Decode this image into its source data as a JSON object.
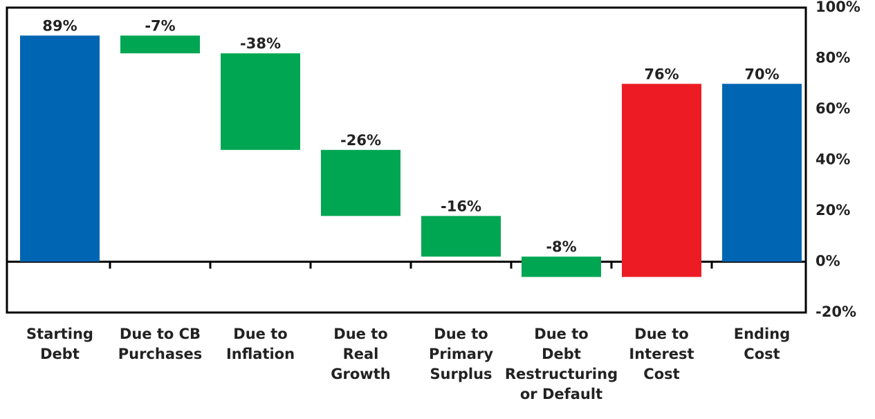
{
  "chart_data": {
    "type": "waterfall",
    "categories": [
      [
        "Starting",
        "Debt"
      ],
      [
        "Due to CB",
        "Purchases"
      ],
      [
        "Due to",
        "Inflation"
      ],
      [
        "Due to",
        "Real",
        "Growth"
      ],
      [
        "Due to",
        "Primary",
        "Surplus"
      ],
      [
        "Due to",
        "Debt",
        "Restructuring",
        "or Default"
      ],
      [
        "Due to",
        "Interest",
        "Cost"
      ],
      [
        "Ending",
        "Cost"
      ]
    ],
    "values": [
      89,
      -7,
      -38,
      -26,
      -16,
      -8,
      76,
      70
    ],
    "value_labels": [
      "89%",
      "-7%",
      "-38%",
      "-26%",
      "-16%",
      "-8%",
      "76%",
      "70%"
    ],
    "measure": [
      "absolute",
      "relative",
      "relative",
      "relative",
      "relative",
      "relative",
      "relative",
      "total"
    ],
    "colors": [
      "#0066b3",
      "#00a651",
      "#00a651",
      "#00a651",
      "#00a651",
      "#00a651",
      "#ed1c24",
      "#0066b3"
    ],
    "ylim": [
      -20,
      100
    ],
    "yticks": [
      {
        "value": -20,
        "label": "-20%"
      },
      {
        "value": 0,
        "label": "0%"
      },
      {
        "value": 20,
        "label": "20%"
      },
      {
        "value": 40,
        "label": "40%"
      },
      {
        "value": 60,
        "label": "60%"
      },
      {
        "value": 80,
        "label": "80%"
      },
      {
        "value": 100,
        "label": "100%"
      }
    ],
    "y_axis_side": "right"
  }
}
